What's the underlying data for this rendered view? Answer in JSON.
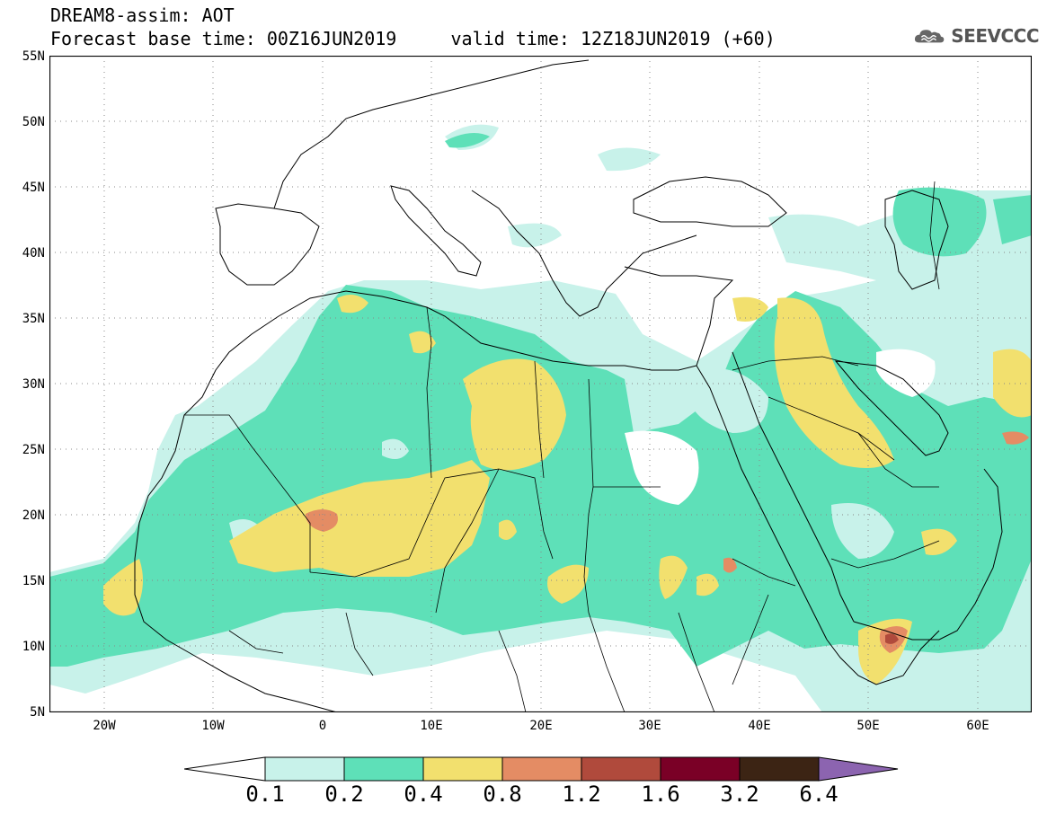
{
  "header": {
    "line1": "DREAM8-assim: AOT",
    "line2": "Forecast base time: 00Z16JUN2019     valid time: 12Z18JUN2019 (+60)"
  },
  "logo": {
    "text": "SEEVCCC",
    "icon": "cloud-icon"
  },
  "map": {
    "lon_range": [
      -25,
      65
    ],
    "lat_range": [
      5,
      55
    ],
    "lat_labels": [
      "55N",
      "50N",
      "45N",
      "40N",
      "35N",
      "30N",
      "25N",
      "20N",
      "15N",
      "10N",
      "5N"
    ],
    "lon_labels": [
      "20W",
      "10W",
      "0",
      "10E",
      "20E",
      "30E",
      "40E",
      "50E",
      "60E"
    ],
    "grid": true
  },
  "colorbar": {
    "ticks": [
      "0.1",
      "0.2",
      "0.4",
      "0.8",
      "1.2",
      "1.6",
      "3.2",
      "6.4"
    ],
    "colors": [
      "#c8f2ea",
      "#5ee0b8",
      "#f2e06e",
      "#e48c64",
      "#b04a3c",
      "#7a0026",
      "#3c2414",
      "#8c64b0"
    ],
    "low_end_color": "#ffffff"
  }
}
